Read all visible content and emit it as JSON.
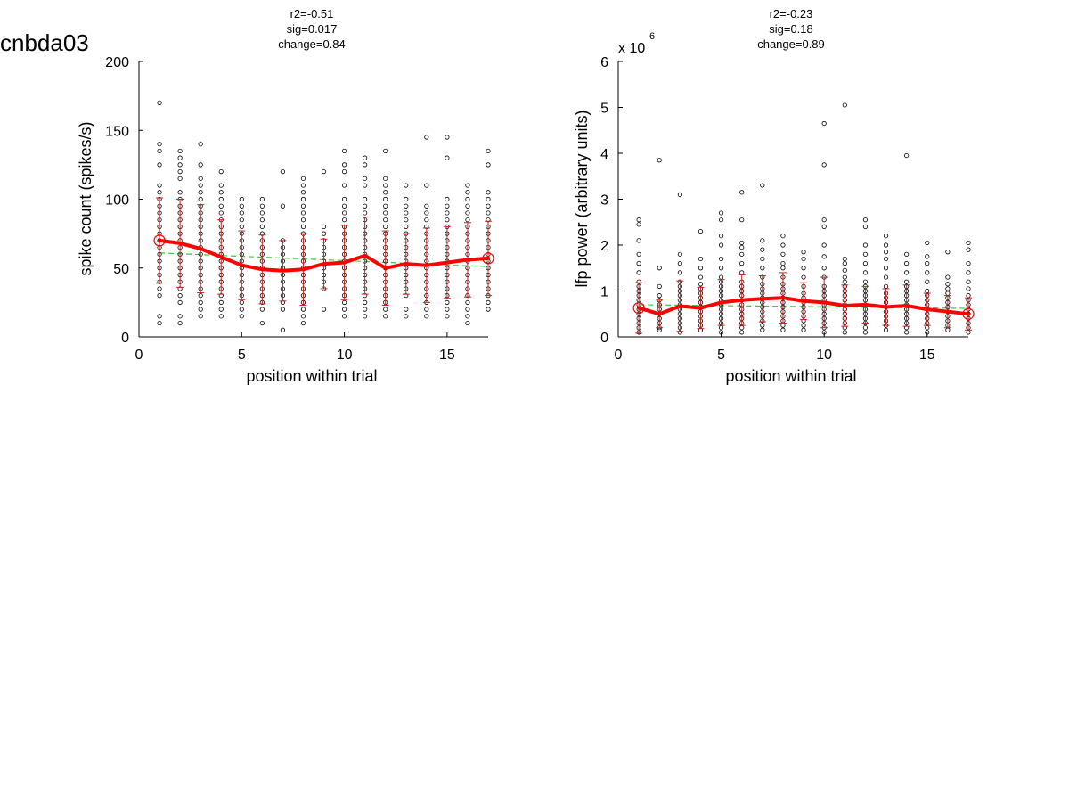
{
  "figure_title": "cnbda03",
  "colors": {
    "points": "#000000",
    "mean": "#ff0000",
    "errorbar": "#cc2222",
    "fit": "#33cc33"
  },
  "chart_data": [
    {
      "type": "scatter",
      "stats": [
        "r2=-0.51",
        "sig=0.017",
        "change=0.84"
      ],
      "xlabel": "position within trial",
      "ylabel": "spike count (spikes/s)",
      "xlim": [
        0,
        17
      ],
      "ylim": [
        0,
        200
      ],
      "xticks": [
        0,
        5,
        10,
        15
      ],
      "yticks": [
        0,
        50,
        100,
        150,
        200
      ],
      "x_tick_labels": [
        "0",
        "5",
        "10",
        "15"
      ],
      "y_tick_labels": [
        "0",
        "50",
        "100",
        "150",
        "200"
      ],
      "exponent_base": "",
      "exponent_power": "",
      "points": [
        {
          "x": 1,
          "ys": [
            10,
            15,
            30,
            35,
            40,
            45,
            50,
            55,
            60,
            65,
            70,
            75,
            80,
            85,
            90,
            95,
            100,
            105,
            110,
            125,
            135,
            140,
            170
          ]
        },
        {
          "x": 2,
          "ys": [
            10,
            15,
            25,
            30,
            35,
            40,
            45,
            50,
            55,
            60,
            65,
            70,
            75,
            80,
            85,
            90,
            95,
            100,
            105,
            115,
            120,
            125,
            130,
            135
          ]
        },
        {
          "x": 3,
          "ys": [
            15,
            20,
            25,
            30,
            35,
            40,
            45,
            50,
            55,
            60,
            65,
            70,
            75,
            80,
            85,
            90,
            95,
            100,
            105,
            110,
            115,
            125,
            140
          ]
        },
        {
          "x": 4,
          "ys": [
            15,
            20,
            25,
            30,
            35,
            40,
            45,
            50,
            55,
            60,
            65,
            70,
            75,
            80,
            85,
            90,
            95,
            100,
            105,
            110,
            120
          ]
        },
        {
          "x": 5,
          "ys": [
            15,
            20,
            25,
            30,
            35,
            40,
            45,
            50,
            55,
            60,
            65,
            70,
            75,
            80,
            85,
            90,
            95,
            100
          ]
        },
        {
          "x": 6,
          "ys": [
            10,
            20,
            25,
            30,
            35,
            40,
            45,
            50,
            55,
            60,
            65,
            70,
            75,
            80,
            85,
            90,
            95,
            100
          ]
        },
        {
          "x": 7,
          "ys": [
            5,
            20,
            25,
            30,
            35,
            40,
            45,
            50,
            55,
            60,
            65,
            70,
            95,
            120
          ]
        },
        {
          "x": 8,
          "ys": [
            10,
            15,
            20,
            25,
            30,
            35,
            40,
            45,
            50,
            55,
            60,
            65,
            70,
            75,
            80,
            85,
            90,
            95,
            100,
            105,
            110,
            115
          ]
        },
        {
          "x": 9,
          "ys": [
            20,
            35,
            40,
            45,
            50,
            55,
            60,
            65,
            70,
            75,
            80,
            120
          ]
        },
        {
          "x": 10,
          "ys": [
            15,
            20,
            25,
            30,
            35,
            40,
            45,
            50,
            55,
            60,
            65,
            70,
            75,
            80,
            85,
            90,
            95,
            100,
            110,
            120,
            125,
            135
          ]
        },
        {
          "x": 11,
          "ys": [
            15,
            20,
            25,
            30,
            35,
            40,
            45,
            50,
            55,
            60,
            65,
            70,
            75,
            80,
            85,
            90,
            95,
            100,
            110,
            115,
            125,
            130
          ]
        },
        {
          "x": 12,
          "ys": [
            15,
            20,
            25,
            30,
            35,
            40,
            45,
            50,
            55,
            60,
            65,
            70,
            75,
            80,
            85,
            90,
            95,
            100,
            105,
            110,
            115,
            135
          ]
        },
        {
          "x": 13,
          "ys": [
            15,
            20,
            30,
            35,
            40,
            45,
            50,
            55,
            60,
            65,
            70,
            75,
            80,
            85,
            90,
            95,
            100,
            110
          ]
        },
        {
          "x": 14,
          "ys": [
            15,
            20,
            25,
            30,
            35,
            40,
            45,
            50,
            55,
            60,
            65,
            70,
            75,
            80,
            85,
            90,
            95,
            110,
            145
          ]
        },
        {
          "x": 15,
          "ys": [
            15,
            20,
            25,
            30,
            35,
            40,
            45,
            50,
            55,
            60,
            65,
            70,
            75,
            80,
            85,
            90,
            95,
            100,
            130,
            145
          ]
        },
        {
          "x": 16,
          "ys": [
            10,
            15,
            20,
            25,
            30,
            35,
            40,
            45,
            50,
            55,
            60,
            65,
            70,
            75,
            80,
            85,
            90,
            95,
            100,
            105,
            110
          ]
        },
        {
          "x": 17,
          "ys": [
            20,
            25,
            30,
            35,
            40,
            45,
            50,
            55,
            60,
            65,
            70,
            75,
            80,
            85,
            90,
            95,
            100,
            105,
            125,
            135
          ]
        }
      ],
      "mean": [
        {
          "x": 1,
          "y": 70,
          "err": 31
        },
        {
          "x": 2,
          "y": 68,
          "err": 32
        },
        {
          "x": 3,
          "y": 64,
          "err": 32
        },
        {
          "x": 4,
          "y": 58,
          "err": 27
        },
        {
          "x": 5,
          "y": 52,
          "err": 25
        },
        {
          "x": 6,
          "y": 49,
          "err": 25
        },
        {
          "x": 7,
          "y": 48,
          "err": 22
        },
        {
          "x": 8,
          "y": 49,
          "err": 26
        },
        {
          "x": 9,
          "y": 53,
          "err": 18
        },
        {
          "x": 10,
          "y": 54,
          "err": 27
        },
        {
          "x": 11,
          "y": 59,
          "err": 28
        },
        {
          "x": 12,
          "y": 50,
          "err": 27
        },
        {
          "x": 13,
          "y": 53,
          "err": 22
        },
        {
          "x": 14,
          "y": 52,
          "err": 27
        },
        {
          "x": 15,
          "y": 54,
          "err": 26
        },
        {
          "x": 16,
          "y": 56,
          "err": 27
        },
        {
          "x": 17,
          "y": 57,
          "err": 27
        }
      ],
      "fit": [
        {
          "x": 1,
          "y": 61
        },
        {
          "x": 17,
          "y": 51
        }
      ]
    },
    {
      "type": "scatter",
      "stats": [
        "r2=-0.23",
        "sig=0.18",
        "change=0.89"
      ],
      "xlabel": "position within trial",
      "ylabel": "lfp power (arbitrary units)",
      "xlim": [
        0,
        17
      ],
      "ylim": [
        0,
        6
      ],
      "xticks": [
        0,
        5,
        10,
        15
      ],
      "yticks": [
        0,
        1,
        2,
        3,
        4,
        5,
        6
      ],
      "x_tick_labels": [
        "0",
        "5",
        "10",
        "15"
      ],
      "y_tick_labels": [
        "0",
        "1",
        "2",
        "3",
        "4",
        "5",
        "6"
      ],
      "exponent_base": "x 10",
      "exponent_power": "6",
      "points": [
        {
          "x": 1,
          "ys": [
            0.1,
            0.2,
            0.3,
            0.4,
            0.5,
            0.6,
            0.7,
            0.8,
            0.9,
            1.0,
            1.1,
            1.2,
            1.4,
            1.6,
            1.8,
            2.1,
            2.45,
            2.55
          ]
        },
        {
          "x": 2,
          "ys": [
            0.15,
            0.2,
            0.3,
            0.4,
            0.5,
            0.6,
            0.7,
            0.8,
            0.9,
            1.1,
            1.5,
            3.85
          ]
        },
        {
          "x": 3,
          "ys": [
            0.1,
            0.2,
            0.3,
            0.4,
            0.5,
            0.6,
            0.7,
            0.8,
            0.9,
            1.0,
            1.1,
            1.2,
            1.4,
            1.6,
            1.8,
            3.1
          ]
        },
        {
          "x": 4,
          "ys": [
            0.15,
            0.25,
            0.35,
            0.45,
            0.55,
            0.65,
            0.75,
            0.85,
            0.95,
            1.05,
            1.15,
            1.3,
            1.5,
            1.7,
            2.3
          ]
        },
        {
          "x": 5,
          "ys": [
            0.1,
            0.2,
            0.3,
            0.4,
            0.5,
            0.6,
            0.7,
            0.8,
            0.9,
            1.0,
            1.1,
            1.2,
            1.3,
            1.5,
            1.7,
            2.0,
            2.2,
            2.55,
            2.7
          ]
        },
        {
          "x": 6,
          "ys": [
            0.1,
            0.2,
            0.3,
            0.4,
            0.5,
            0.6,
            0.7,
            0.8,
            0.9,
            1.0,
            1.1,
            1.2,
            1.4,
            1.6,
            1.8,
            1.95,
            2.05,
            2.55,
            3.15
          ]
        },
        {
          "x": 7,
          "ys": [
            0.15,
            0.25,
            0.35,
            0.45,
            0.55,
            0.65,
            0.75,
            0.85,
            0.95,
            1.05,
            1.15,
            1.3,
            1.5,
            1.7,
            1.9,
            2.1,
            3.3
          ]
        },
        {
          "x": 8,
          "ys": [
            0.15,
            0.25,
            0.35,
            0.45,
            0.55,
            0.65,
            0.75,
            0.85,
            0.95,
            1.05,
            1.15,
            1.3,
            1.5,
            1.6,
            1.8,
            2.0,
            2.2
          ]
        },
        {
          "x": 9,
          "ys": [
            0.15,
            0.25,
            0.35,
            0.45,
            0.55,
            0.65,
            0.75,
            0.85,
            0.95,
            1.1,
            1.3,
            1.5,
            1.7,
            1.85
          ]
        },
        {
          "x": 10,
          "ys": [
            0.1,
            0.2,
            0.3,
            0.4,
            0.5,
            0.6,
            0.7,
            0.8,
            0.9,
            1.0,
            1.1,
            1.3,
            1.5,
            1.75,
            2.0,
            2.4,
            2.55,
            3.75,
            4.65
          ]
        },
        {
          "x": 11,
          "ys": [
            0.1,
            0.2,
            0.3,
            0.4,
            0.5,
            0.6,
            0.7,
            0.8,
            0.9,
            1.0,
            1.1,
            1.2,
            1.3,
            1.45,
            1.6,
            1.7,
            5.05
          ]
        },
        {
          "x": 12,
          "ys": [
            0.1,
            0.2,
            0.3,
            0.4,
            0.5,
            0.6,
            0.7,
            0.8,
            0.9,
            1.0,
            1.1,
            1.2,
            1.4,
            1.6,
            1.8,
            2.0,
            2.4,
            2.55
          ]
        },
        {
          "x": 13,
          "ys": [
            0.15,
            0.25,
            0.35,
            0.45,
            0.55,
            0.65,
            0.75,
            0.85,
            0.95,
            1.1,
            1.3,
            1.5,
            1.7,
            1.85,
            2.0,
            2.2
          ]
        },
        {
          "x": 14,
          "ys": [
            0.1,
            0.2,
            0.3,
            0.4,
            0.5,
            0.6,
            0.7,
            0.8,
            0.9,
            1.0,
            1.1,
            1.2,
            1.4,
            1.6,
            1.8,
            3.95
          ]
        },
        {
          "x": 15,
          "ys": [
            0.1,
            0.2,
            0.3,
            0.4,
            0.5,
            0.6,
            0.7,
            0.8,
            0.9,
            1.0,
            1.2,
            1.4,
            1.6,
            1.75,
            2.05
          ]
        },
        {
          "x": 16,
          "ys": [
            0.15,
            0.25,
            0.35,
            0.45,
            0.55,
            0.65,
            0.75,
            0.85,
            0.95,
            1.05,
            1.15,
            1.3,
            1.85
          ]
        },
        {
          "x": 17,
          "ys": [
            0.1,
            0.2,
            0.3,
            0.4,
            0.5,
            0.6,
            0.7,
            0.8,
            0.9,
            1.05,
            1.2,
            1.4,
            1.6,
            1.9,
            2.05
          ]
        }
      ],
      "mean": [
        {
          "x": 1,
          "y": 0.63,
          "err": 0.55
        },
        {
          "x": 2,
          "y": 0.5,
          "err": 0.3
        },
        {
          "x": 3,
          "y": 0.67,
          "err": 0.55
        },
        {
          "x": 4,
          "y": 0.63,
          "err": 0.45
        },
        {
          "x": 5,
          "y": 0.75,
          "err": 0.5
        },
        {
          "x": 6,
          "y": 0.8,
          "err": 0.55
        },
        {
          "x": 7,
          "y": 0.83,
          "err": 0.5
        },
        {
          "x": 8,
          "y": 0.85,
          "err": 0.55
        },
        {
          "x": 9,
          "y": 0.78,
          "err": 0.4
        },
        {
          "x": 10,
          "y": 0.75,
          "err": 0.55
        },
        {
          "x": 11,
          "y": 0.68,
          "err": 0.45
        },
        {
          "x": 12,
          "y": 0.7,
          "err": 0.4
        },
        {
          "x": 13,
          "y": 0.65,
          "err": 0.4
        },
        {
          "x": 14,
          "y": 0.68,
          "err": 0.45
        },
        {
          "x": 15,
          "y": 0.6,
          "err": 0.35
        },
        {
          "x": 16,
          "y": 0.55,
          "err": 0.35
        },
        {
          "x": 17,
          "y": 0.5,
          "err": 0.35
        }
      ],
      "fit": [
        {
          "x": 1,
          "y": 0.7
        },
        {
          "x": 17,
          "y": 0.62
        }
      ]
    }
  ]
}
